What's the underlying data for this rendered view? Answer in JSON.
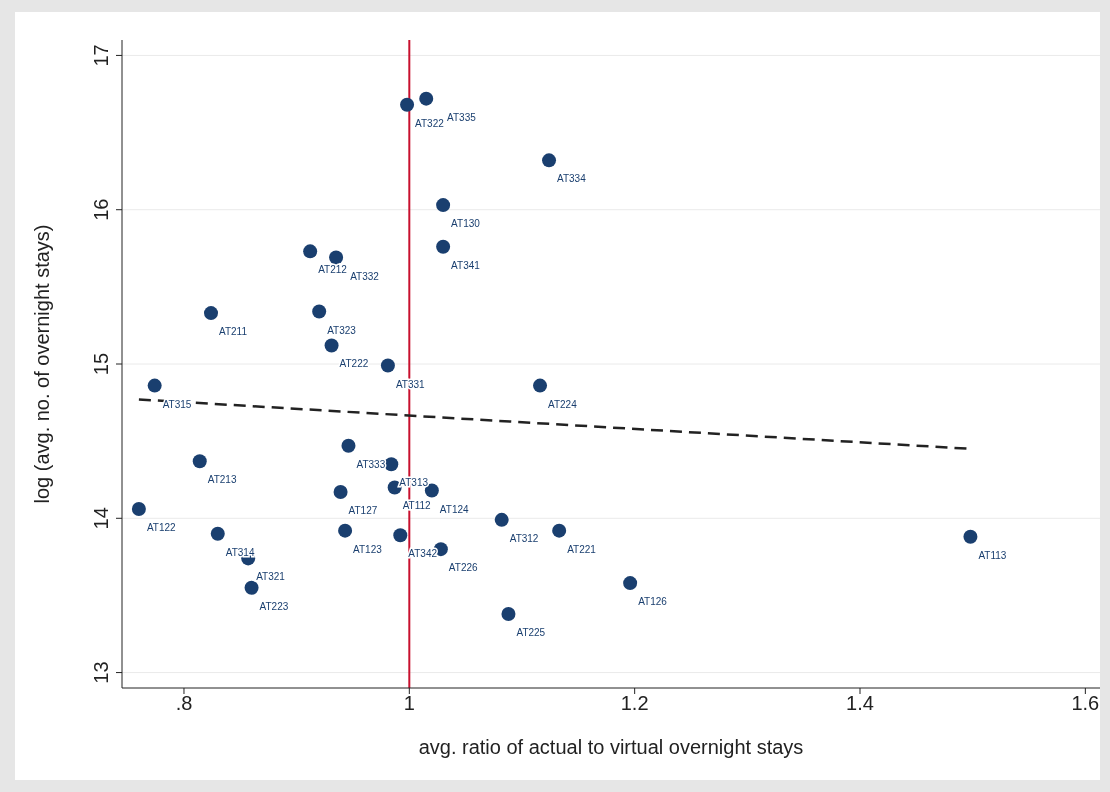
{
  "chart_data": {
    "type": "scatter",
    "xlabel": "avg. ratio of actual to virtual overnight stays",
    "ylabel": "log (avg. no. of overnight stays)",
    "xlim": [
      0.745,
      1.613
    ],
    "xticks": [
      {
        "value": 0.8,
        "label": ".8"
      },
      1,
      1.2,
      1.4,
      1.6
    ],
    "ylim": [
      12.9,
      17.1
    ],
    "yticks": [
      13,
      14,
      15,
      16,
      17
    ],
    "grid": "y",
    "marker": "circle",
    "series": [
      {
        "type": "scatter",
        "color": "#1a3f6f",
        "x": [
          0.998,
          1.015,
          1.124,
          1.03,
          1.03,
          0.912,
          0.935,
          0.824,
          0.92,
          0.931,
          0.981,
          1.116,
          0.774,
          0.814,
          0.946,
          0.984,
          0.987,
          1.02,
          0.939,
          0.76,
          1.082,
          1.133,
          1.498,
          0.83,
          0.943,
          0.992,
          1.028,
          0.857,
          0.86,
          1.196,
          1.088
        ],
        "values": [
          16.68,
          16.72,
          16.32,
          16.03,
          15.76,
          15.73,
          15.69,
          15.33,
          15.34,
          15.12,
          14.99,
          14.86,
          14.86,
          14.37,
          14.47,
          14.35,
          14.2,
          14.18,
          14.17,
          14.06,
          13.99,
          13.92,
          13.88,
          13.9,
          13.92,
          13.89,
          13.8,
          13.74,
          13.55,
          13.58,
          13.38
        ]
      },
      {
        "type": "line",
        "color": "#222222",
        "line_style": "dashed",
        "marker": "none",
        "x": [
          0.76,
          1.498
        ],
        "values": [
          14.77,
          14.45
        ]
      }
    ],
    "ref_lines": [
      {
        "axis": "x",
        "value": 1,
        "color": "#c8102e"
      }
    ],
    "annotations": [
      {
        "text": "AT322",
        "x": 0.998,
        "y": 16.68
      },
      {
        "text": "AT335",
        "x": 1.015,
        "y": 16.72
      },
      {
        "text": "AT334",
        "x": 1.124,
        "y": 16.32
      },
      {
        "text": "AT130",
        "x": 1.03,
        "y": 16.03
      },
      {
        "text": "AT341",
        "x": 1.03,
        "y": 15.76
      },
      {
        "text": "AT212",
        "x": 0.912,
        "y": 15.73
      },
      {
        "text": "AT332",
        "x": 0.935,
        "y": 15.69
      },
      {
        "text": "AT211",
        "x": 0.824,
        "y": 15.33
      },
      {
        "text": "AT323",
        "x": 0.92,
        "y": 15.34
      },
      {
        "text": "AT222",
        "x": 0.931,
        "y": 15.12
      },
      {
        "text": "AT331",
        "x": 0.981,
        "y": 14.99
      },
      {
        "text": "AT224",
        "x": 1.116,
        "y": 14.86
      },
      {
        "text": "AT315",
        "x": 0.774,
        "y": 14.86
      },
      {
        "text": "AT213",
        "x": 0.814,
        "y": 14.37
      },
      {
        "text": "AT333",
        "x": 0.946,
        "y": 14.47
      },
      {
        "text": "AT313",
        "x": 0.984,
        "y": 14.35
      },
      {
        "text": "AT112",
        "x": 0.987,
        "y": 14.2
      },
      {
        "text": "AT124",
        "x": 1.02,
        "y": 14.18
      },
      {
        "text": "AT127",
        "x": 0.939,
        "y": 14.17
      },
      {
        "text": "AT122",
        "x": 0.76,
        "y": 14.06
      },
      {
        "text": "AT312",
        "x": 1.082,
        "y": 13.99
      },
      {
        "text": "AT221",
        "x": 1.133,
        "y": 13.92
      },
      {
        "text": "AT113",
        "x": 1.498,
        "y": 13.88
      },
      {
        "text": "AT314",
        "x": 0.83,
        "y": 13.9
      },
      {
        "text": "AT123",
        "x": 0.943,
        "y": 13.92
      },
      {
        "text": "AT342",
        "x": 0.992,
        "y": 13.89
      },
      {
        "text": "AT226",
        "x": 1.028,
        "y": 13.8
      },
      {
        "text": "AT321",
        "x": 0.857,
        "y": 13.74
      },
      {
        "text": "AT223",
        "x": 0.86,
        "y": 13.55
      },
      {
        "text": "AT126",
        "x": 1.196,
        "y": 13.58
      },
      {
        "text": "AT225",
        "x": 1.088,
        "y": 13.38
      }
    ]
  }
}
